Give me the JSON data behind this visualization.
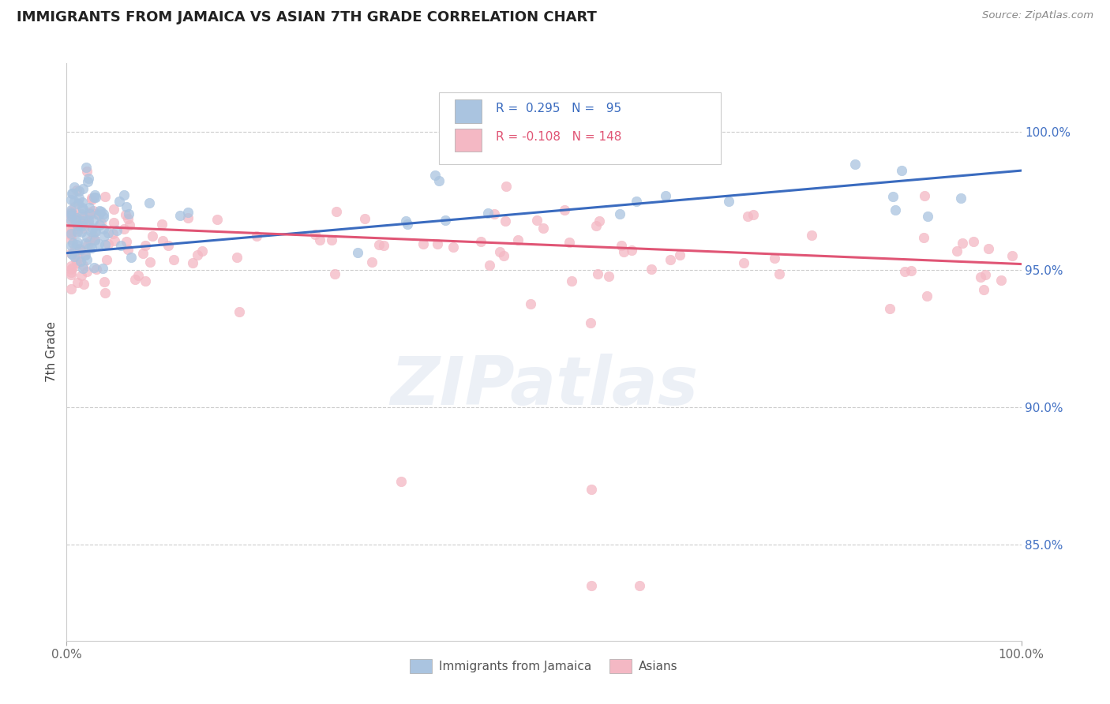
{
  "title": "IMMIGRANTS FROM JAMAICA VS ASIAN 7TH GRADE CORRELATION CHART",
  "source": "Source: ZipAtlas.com",
  "ylabel": "7th Grade",
  "xlim": [
    0.0,
    1.0
  ],
  "ylim": [
    0.815,
    1.025
  ],
  "yticks": [
    0.85,
    0.9,
    0.95,
    1.0
  ],
  "ytick_labels": [
    "85.0%",
    "90.0%",
    "95.0%",
    "100.0%"
  ],
  "blue_color": "#aac4e0",
  "pink_color": "#f4b8c4",
  "blue_line_color": "#3a6bbf",
  "pink_line_color": "#e05575",
  "R_blue": 0.295,
  "N_blue": 95,
  "R_pink": -0.108,
  "N_pink": 148,
  "blue_slope": 0.03,
  "blue_intercept": 0.956,
  "pink_slope": -0.014,
  "pink_intercept": 0.966,
  "watermark": "ZIPatlas",
  "marker_size": 80,
  "marker_alpha": 0.75
}
